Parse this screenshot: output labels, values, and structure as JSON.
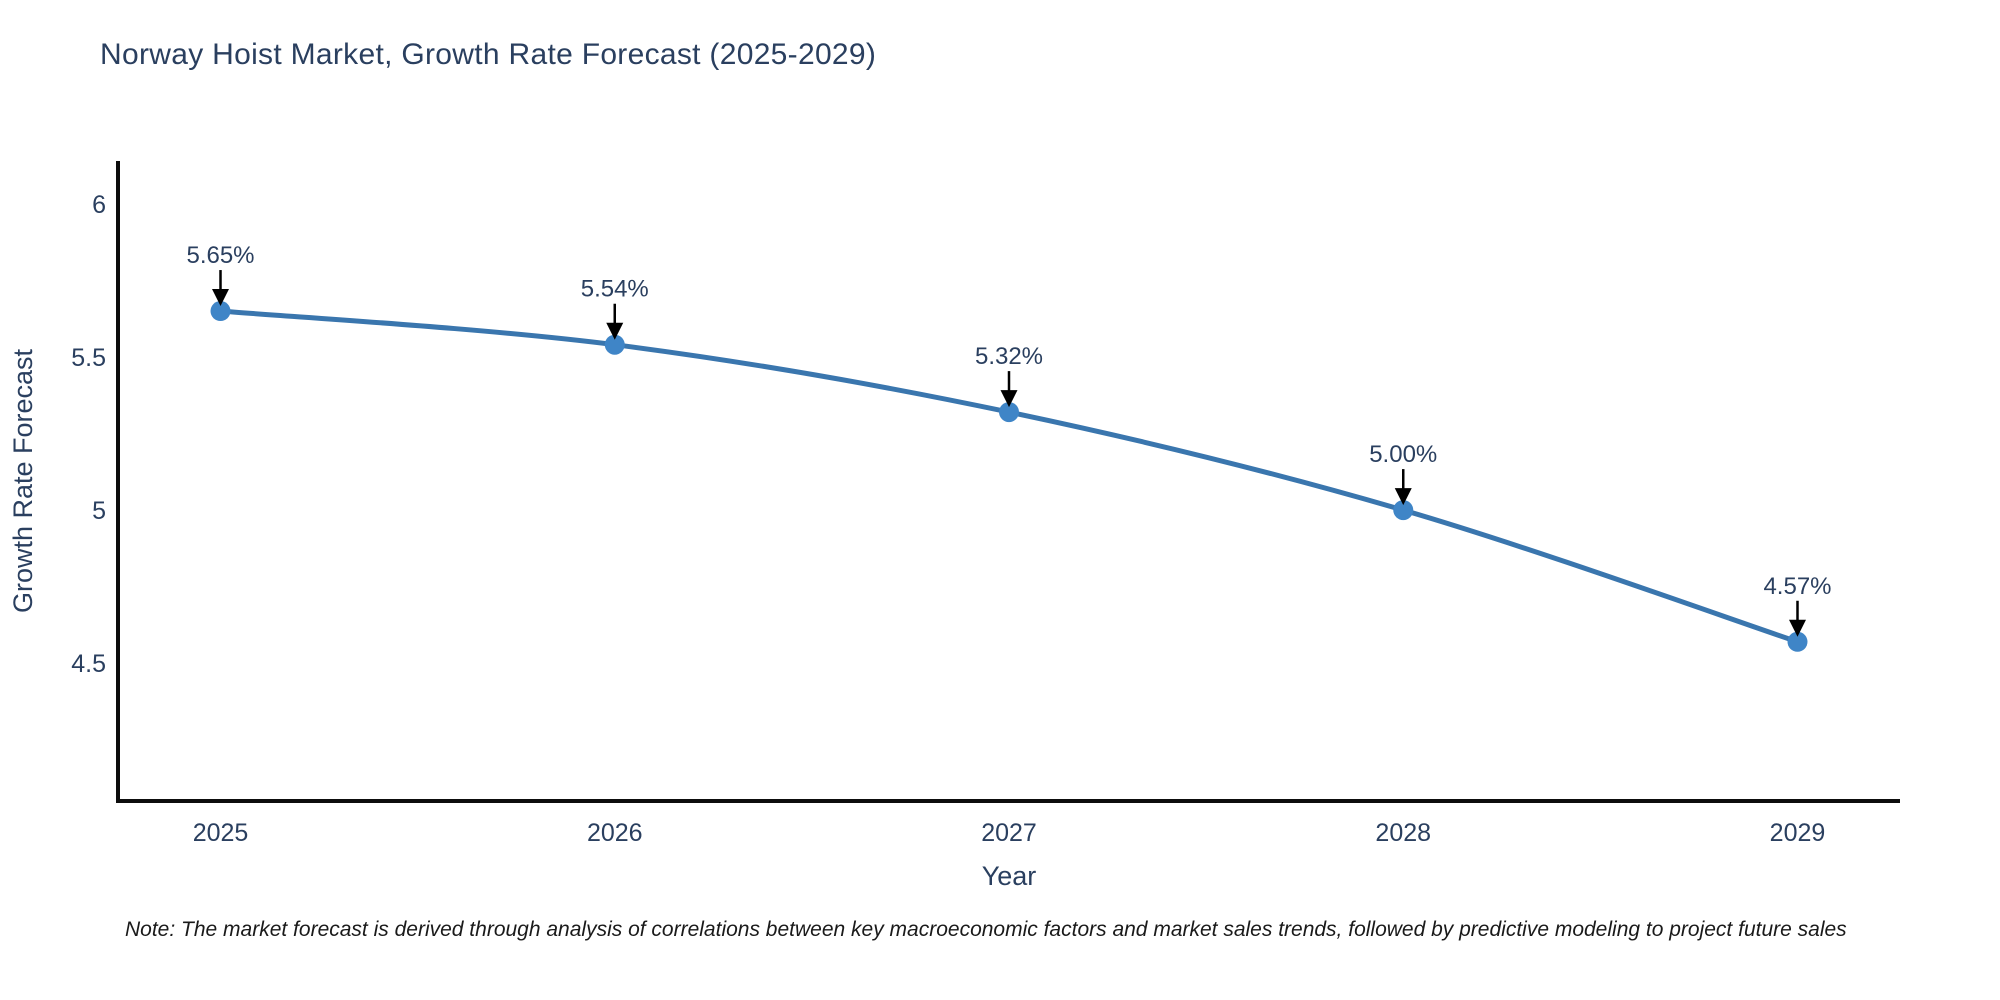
{
  "chart_data": {
    "type": "line",
    "title": "Norway Hoist Market, Growth Rate Forecast (2025-2029)",
    "xlabel": "Year",
    "ylabel": "Growth Rate Forecast",
    "categories": [
      "2025",
      "2026",
      "2027",
      "2028",
      "2029"
    ],
    "x": [
      2025,
      2026,
      2027,
      2028,
      2029
    ],
    "series": [
      {
        "name": "Growth Rate Forecast",
        "values": [
          5.65,
          5.54,
          5.32,
          5.0,
          4.57
        ],
        "point_labels": [
          "5.65%",
          "5.54%",
          "5.32%",
          "5.00%",
          "4.57%"
        ]
      }
    ],
    "yticks": [
      6,
      5.5,
      5,
      4.5
    ],
    "ytick_labels": [
      "6",
      "5.5",
      "5",
      "4.5"
    ],
    "ylim": [
      4.05,
      6.14
    ],
    "xlim": [
      2024.74,
      2029.26
    ],
    "grid": false,
    "legend_position": "none",
    "annotations_have_arrows": true,
    "colors": {
      "line": "#3a76ae",
      "marker": "#3f85c7",
      "axis": "#0d0d0d",
      "tick_text": "#2a3f5f",
      "title_text": "#2a3f5f",
      "annotation_text": "#2a3f5f",
      "annotation_arrow": "#000000",
      "background": "#ffffff"
    }
  },
  "footnote": "Note: The market forecast is derived through analysis of correlations between key macroeconomic factors and market sales trends, followed by predictive modeling to project future sales"
}
